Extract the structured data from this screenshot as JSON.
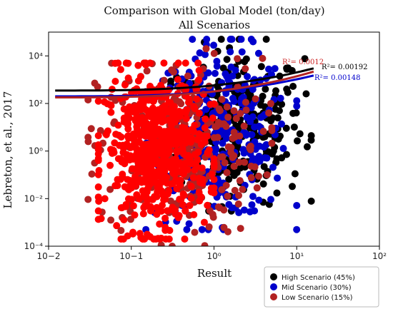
{
  "chart_data": {
    "type": "scatter",
    "title": "Comparison with Global Model (ton/day)",
    "subtitle": "All Scenarios",
    "xlabel": "Result",
    "ylabel": "Lebreton, et al., 2017",
    "xscale": "log",
    "yscale": "log",
    "xlim": [
      0.01,
      100
    ],
    "ylim": [
      0.0001,
      100000
    ],
    "x_ticks": [
      "10−2",
      "10−1",
      "10⁰",
      "10¹",
      "10²"
    ],
    "y_ticks": [
      "10⁻⁴",
      "10⁻²",
      "10⁰",
      "10²",
      "10⁴"
    ],
    "legend_position": "bottom-right",
    "series": [
      {
        "name": "High Scenario (45%)",
        "color": "#000000",
        "x_range": [
          0.3,
          15
        ],
        "y_range": [
          0.003,
          50000
        ],
        "trend_r2": "R²= 0.00192",
        "trend_start_y": 350,
        "trend_end_y": 3000,
        "trend_x": [
          0.012,
          16
        ]
      },
      {
        "name": "Mid Scenario (30%)",
        "color": "#0000cc",
        "x_range": [
          0.15,
          10
        ],
        "y_range": [
          0.0005,
          50000
        ],
        "trend_r2": "R²= 0.00148",
        "trend_start_y": 200,
        "trend_end_y": 1500,
        "trend_x": [
          0.012,
          16
        ]
      },
      {
        "name": "Low Scenario (15%)",
        "color": "#b22222",
        "x_range": [
          0.03,
          5
        ],
        "y_range": [
          0.0001,
          20000
        ],
        "trend_r2": "R²= 0.0012",
        "trend_start_y": 180,
        "trend_end_y": 2200,
        "trend_x": [
          0.012,
          16
        ]
      },
      {
        "name": "",
        "color": "#ff0000",
        "x_range": [
          0.04,
          1
        ],
        "y_range": [
          0.0002,
          5000
        ]
      }
    ]
  }
}
